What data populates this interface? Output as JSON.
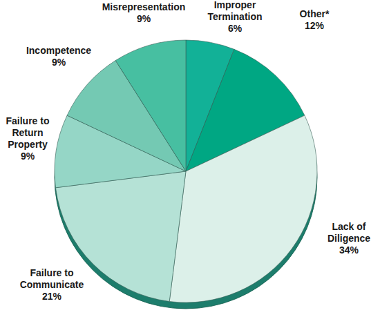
{
  "chart_data": {
    "type": "pie",
    "categories": [
      "Improper Termination",
      "Other*",
      "Lack of Diligence",
      "Failure to Communicate",
      "Failure to Return Property",
      "Incompetence",
      "Misrepresentation"
    ],
    "values": [
      6,
      12,
      34,
      21,
      9,
      9,
      9
    ],
    "value_labels": [
      "6%",
      "12%",
      "34%",
      "21%",
      "9%",
      "9%",
      "9%"
    ],
    "colors": [
      "#12b197",
      "#00a783",
      "#dcf0e9",
      "#b5e2d6",
      "#95d6c6",
      "#74c9b3",
      "#47bfa1"
    ],
    "data_labels": true
  }
}
